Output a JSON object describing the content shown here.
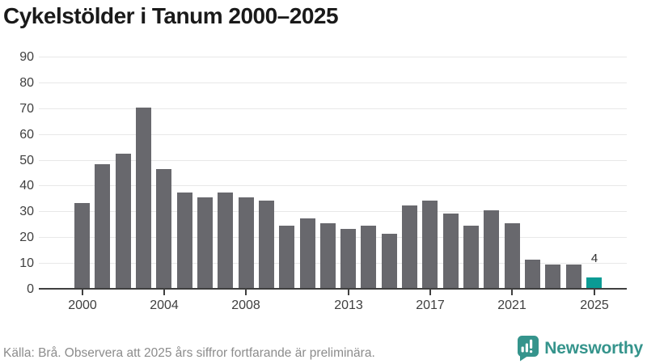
{
  "title": "Cykelstölder i Tanum 2000–2025",
  "chart_data": {
    "type": "bar",
    "title": "Cykelstölder i Tanum 2000–2025",
    "xlabel": "",
    "ylabel": "",
    "categories": [
      "2000",
      "2001",
      "2002",
      "2003",
      "2004",
      "2005",
      "2006",
      "2007",
      "2008",
      "2009",
      "2010",
      "2011",
      "2012",
      "2013",
      "2014",
      "2015",
      "2016",
      "2017",
      "2018",
      "2019",
      "2020",
      "2021",
      "2022",
      "2023",
      "2024",
      "2025"
    ],
    "values": [
      33,
      48,
      52,
      70,
      46,
      37,
      35,
      37,
      35,
      34,
      24,
      27,
      25,
      23,
      24,
      21,
      32,
      34,
      29,
      24,
      30,
      25,
      11,
      9,
      9,
      4
    ],
    "ylim": [
      0,
      90
    ],
    "y_ticks": [
      0,
      10,
      20,
      30,
      40,
      50,
      60,
      70,
      80,
      90
    ],
    "x_tick_labels": [
      "2000",
      "2004",
      "2008",
      "2013",
      "2017",
      "2021",
      "2025"
    ],
    "grid": "horizontal",
    "legend": "none",
    "bar_color": "#68686d",
    "highlight_color": "#0b9b94",
    "highlight_index": 25,
    "highlight_label": "4"
  },
  "footer": {
    "source": "Källa: Brå. Observera att 2025 års siffror fortfarande är preliminära.",
    "logo_text": "Newsworthy"
  },
  "colors": {
    "background": "#ffffff",
    "bar": "#68686d",
    "highlight_teal": "#0b9b94",
    "logo_teal": "#35948c",
    "axis_text": "#3f3f3f",
    "gridline": "#e8e8e8",
    "source_text": "#8c8c8c",
    "title_text": "#1a1a1a"
  }
}
